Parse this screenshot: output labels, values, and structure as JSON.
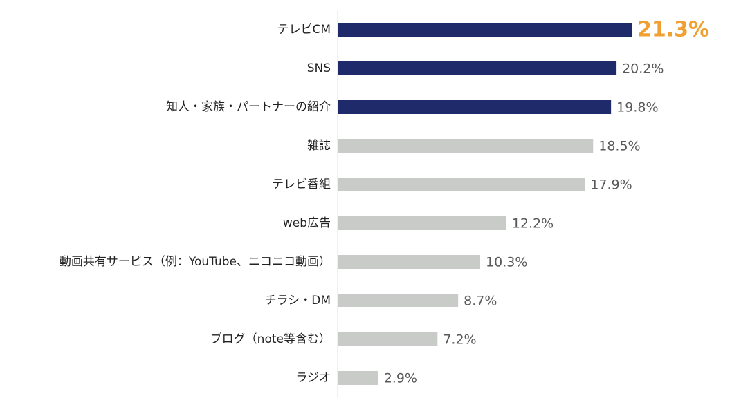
{
  "chart_data": {
    "type": "hbar",
    "categories": [
      "テレビCM",
      "SNS",
      "知人・家族・パートナーの紹介",
      "雑誌",
      "テレビ番組",
      "web広告",
      "動画共有サービス（例：YouTube、ニコニコ動画）",
      "チラシ・DM",
      "ブログ（note等含む）",
      "ラジオ"
    ],
    "values": [
      21.3,
      20.2,
      19.8,
      18.5,
      17.9,
      12.2,
      10.3,
      8.7,
      7.2,
      2.9
    ],
    "value_labels": [
      "21.3%",
      "20.2%",
      "19.8%",
      "18.5%",
      "17.9%",
      "12.2%",
      "10.3%",
      "8.7%",
      "7.2%",
      "2.9%"
    ],
    "colors": [
      "#1f2a6b",
      "#1f2a6b",
      "#1f2a6b",
      "#c9cbc9",
      "#c9cbc9",
      "#c9cbc9",
      "#c9cbc9",
      "#c9cbc9",
      "#c9cbc9",
      "#c9cbc9"
    ],
    "highlight_color": "#f0a030"
  }
}
